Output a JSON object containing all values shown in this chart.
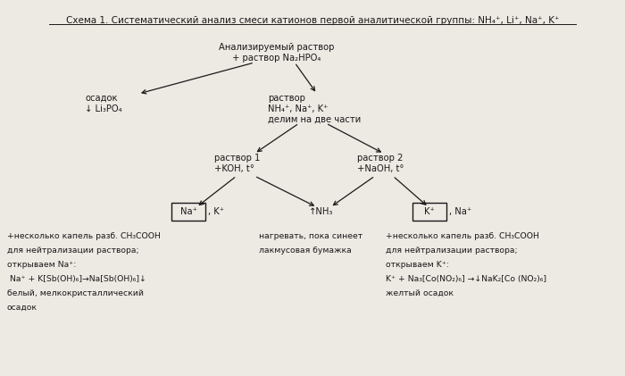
{
  "bg_color": "#ede9e3",
  "text_color": "#1a1a1a",
  "title": "Схема 1. Систематический анализ смеси катионов первой аналитической группы: NH₄⁺, Li⁺, Na⁺, K⁺",
  "top_text": "Анализируемый раствор\n+ раствор Na₂HPO₄",
  "left_label": "осадок\n↓ Li₃PO₄",
  "right_label": "раствор\nNH₄⁺, Na⁺, K⁺\nделим на две части",
  "r1_label": "раствор 1\n+KOH, t°",
  "r2_label": "раствор 2\n+NaOH, t°",
  "na_box_text": "Na⁺",
  "k_after_na": ", K⁺",
  "nh3_text": "↑NH₃",
  "k_box_text": "K⁺",
  "na_after_k": ", Na⁺",
  "bottom_left_lines": [
    "+несколько капель разб. CH₃COOH",
    "для нейтрализации раствора;",
    "открываем Na⁺:",
    " Na⁺ + K[Sb(OH)₆]→Na[Sb(OH)₆]↓",
    "белый, мелкокристаллический",
    "осадок"
  ],
  "bottom_mid_lines": [
    "нагревать, пока синеет",
    "лакмусовая бумажка"
  ],
  "bottom_right_lines": [
    "+несколько капель разб. CH₃COOH",
    "для нейтрализации раствора;",
    "открываем K⁺:",
    "K⁺ + Na₃[Co(NO₂)₆] →↓NaK₂[Co (NO₂)₆]",
    "желтый осадок"
  ]
}
